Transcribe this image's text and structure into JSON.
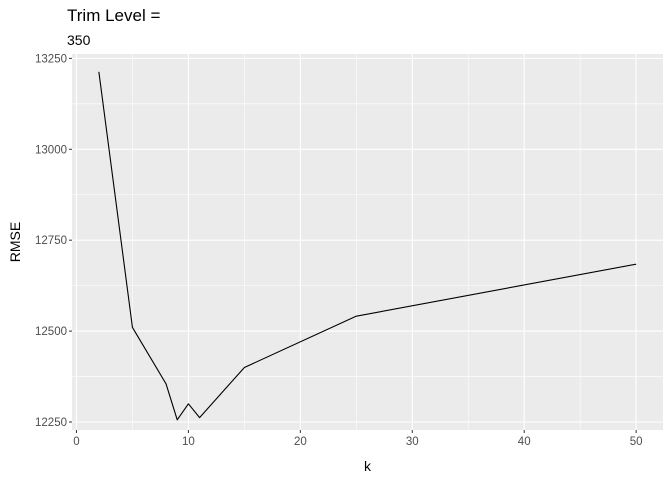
{
  "chart_data": {
    "type": "line",
    "title": "Trim Level =",
    "subtitle": "350",
    "xlabel": "k",
    "ylabel": "RMSE",
    "xlim": [
      -0.4,
      52.4
    ],
    "ylim": [
      12228,
      13262
    ],
    "x_ticks": [
      0,
      10,
      20,
      30,
      40,
      50
    ],
    "y_ticks": [
      12250,
      12500,
      12750,
      13000,
      13250
    ],
    "x_tick_labels": [
      "0",
      "10",
      "20",
      "30",
      "40",
      "50"
    ],
    "y_tick_labels": [
      "12250",
      "12500",
      "12750",
      "13000",
      "13250"
    ],
    "grid": true,
    "legend": "none",
    "colors": {
      "panel": "#ebebeb",
      "grid": "#ffffff",
      "line": "#000000",
      "tick": "#4d4d4d"
    },
    "series": [
      {
        "x": [
          2,
          5,
          8,
          9,
          10,
          11,
          15,
          25,
          50
        ],
        "y": [
          13213,
          12510,
          12355,
          12256,
          12300,
          12262,
          12400,
          12541,
          12684
        ]
      }
    ]
  }
}
